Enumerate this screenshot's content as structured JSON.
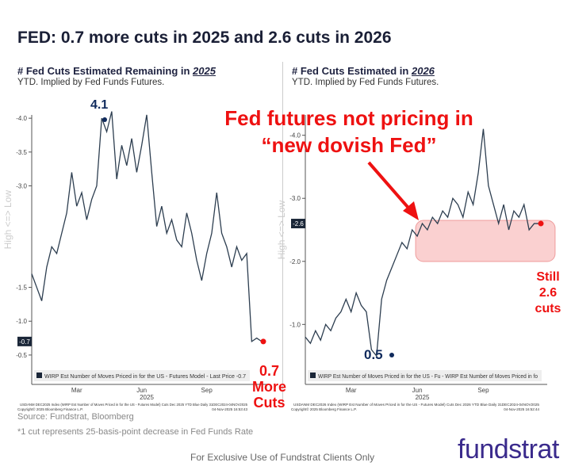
{
  "title": "FED: 0.7 more cuts in 2025 and 2.6 cuts in 2026",
  "annotation": {
    "line1": "Fed futures not pricing in",
    "line2": "“new dovish Fed”",
    "left_peak": "4.1",
    "left_last_1": "0.7",
    "left_last_2": "More",
    "left_last_3": "Cuts",
    "right_low": "0.5",
    "right_last_1": "Still",
    "right_last_2": "2.6 cuts"
  },
  "source": "Source: Fundstrat, Bloomberg",
  "footnote": "*1 cut represents 25-basis-point decrease in Fed Funds Rate",
  "bottom_note": "For Exclusive Use of Fundstrat Clients Only",
  "logo": "fundstrat",
  "chart_data": [
    {
      "type": "line",
      "title_prefix": "# Fed Cuts Estimated Remaining in ",
      "title_year": "2025",
      "subtitle": "YTD. Implied by Fed Funds Futures.",
      "ylabel": "High <=> Low",
      "ylim": [
        -0.3,
        -4.4
      ],
      "yticks": [
        "-4.0",
        "-3.5",
        "-3.0",
        "-1.5",
        "-1.0",
        "-0.5"
      ],
      "ytick_values": [
        -4.0,
        -3.5,
        -3.0,
        -1.5,
        -1.0,
        -0.5
      ],
      "last_label": "-0.7",
      "last_value": -0.7,
      "xticks": [
        "Mar",
        "Jun",
        "Sep"
      ],
      "xtick_weeks": [
        9,
        22,
        35
      ],
      "xyear": "2025",
      "legend": "WIRP Est Number of Moves Priced in for the US - Futures Model - Last Price -0.7",
      "credit1": "USDANM DEC2025 Index (WIRP Est Number of Moves Priced in for the US - Futures Model) Cuts Dec 2025 YTD Blue Daily 31DEC2024-04NOV2025",
      "credit2": "Copyright© 2025 Bloomberg Finance L.P.",
      "stamp": "04-Nov-2025 16:53:43",
      "values": [
        -1.7,
        -1.5,
        -1.3,
        -1.8,
        -2.1,
        -2.0,
        -2.3,
        -2.6,
        -3.2,
        -2.7,
        -2.9,
        -2.5,
        -2.8,
        -3.0,
        -4.0,
        -3.8,
        -4.1,
        -3.1,
        -3.6,
        -3.3,
        -3.7,
        -3.2,
        -3.6,
        -4.05,
        -3.2,
        -2.4,
        -2.7,
        -2.3,
        -2.5,
        -2.2,
        -2.1,
        -2.6,
        -2.3,
        -1.9,
        -1.6,
        -2.0,
        -2.3,
        -2.9,
        -2.3,
        -2.1,
        -1.8,
        -2.1,
        -1.9,
        -2.0,
        -0.7,
        -0.75,
        -0.7
      ]
    },
    {
      "type": "line",
      "title_prefix": "# Fed Cuts Estimated in ",
      "title_year": "2026",
      "subtitle": "YTD. Implied by Fed Funds Futures.",
      "ylabel": "High <=> Low",
      "ylim": [
        -0.3,
        -4.7
      ],
      "yticks": [
        "-4.0",
        "-3.0",
        "-2.0",
        "-1.0"
      ],
      "ytick_values": [
        -4.0,
        -3.0,
        -2.0,
        -1.0
      ],
      "last_label": "-2.6",
      "last_value": -2.6,
      "xticks": [
        "Mar",
        "Jun",
        "Sep"
      ],
      "xtick_weeks": [
        9,
        22,
        35
      ],
      "xyear": "2025",
      "legend": "WIRP Est Number of Moves Priced in for the US - Fu - WIRP Est Number of Moves Priced in fo",
      "credit1": "USDANM DEC2026 Index (WIRP Est Number of Moves Priced in for the US - Futures Model) Cuts Dec 2026 YTD Blue Daily 31DEC2024-04NOV2025",
      "credit2": "Copyright© 2025 Bloomberg Finance L.P.",
      "stamp": "04-Nov-2025 16:52:44",
      "values": [
        -0.8,
        -0.7,
        -0.9,
        -0.75,
        -1.0,
        -0.9,
        -1.1,
        -1.2,
        -1.4,
        -1.2,
        -1.5,
        -1.3,
        -1.2,
        -0.6,
        -0.5,
        -1.4,
        -1.7,
        -1.9,
        -2.1,
        -2.3,
        -2.2,
        -2.5,
        -2.4,
        -2.6,
        -2.5,
        -2.7,
        -2.6,
        -2.8,
        -2.7,
        -3.0,
        -2.9,
        -2.7,
        -3.1,
        -2.9,
        -3.4,
        -4.1,
        -3.2,
        -2.9,
        -2.6,
        -2.9,
        -2.5,
        -2.8,
        -2.7,
        -2.9,
        -2.5,
        -2.6,
        -2.6
      ]
    }
  ]
}
